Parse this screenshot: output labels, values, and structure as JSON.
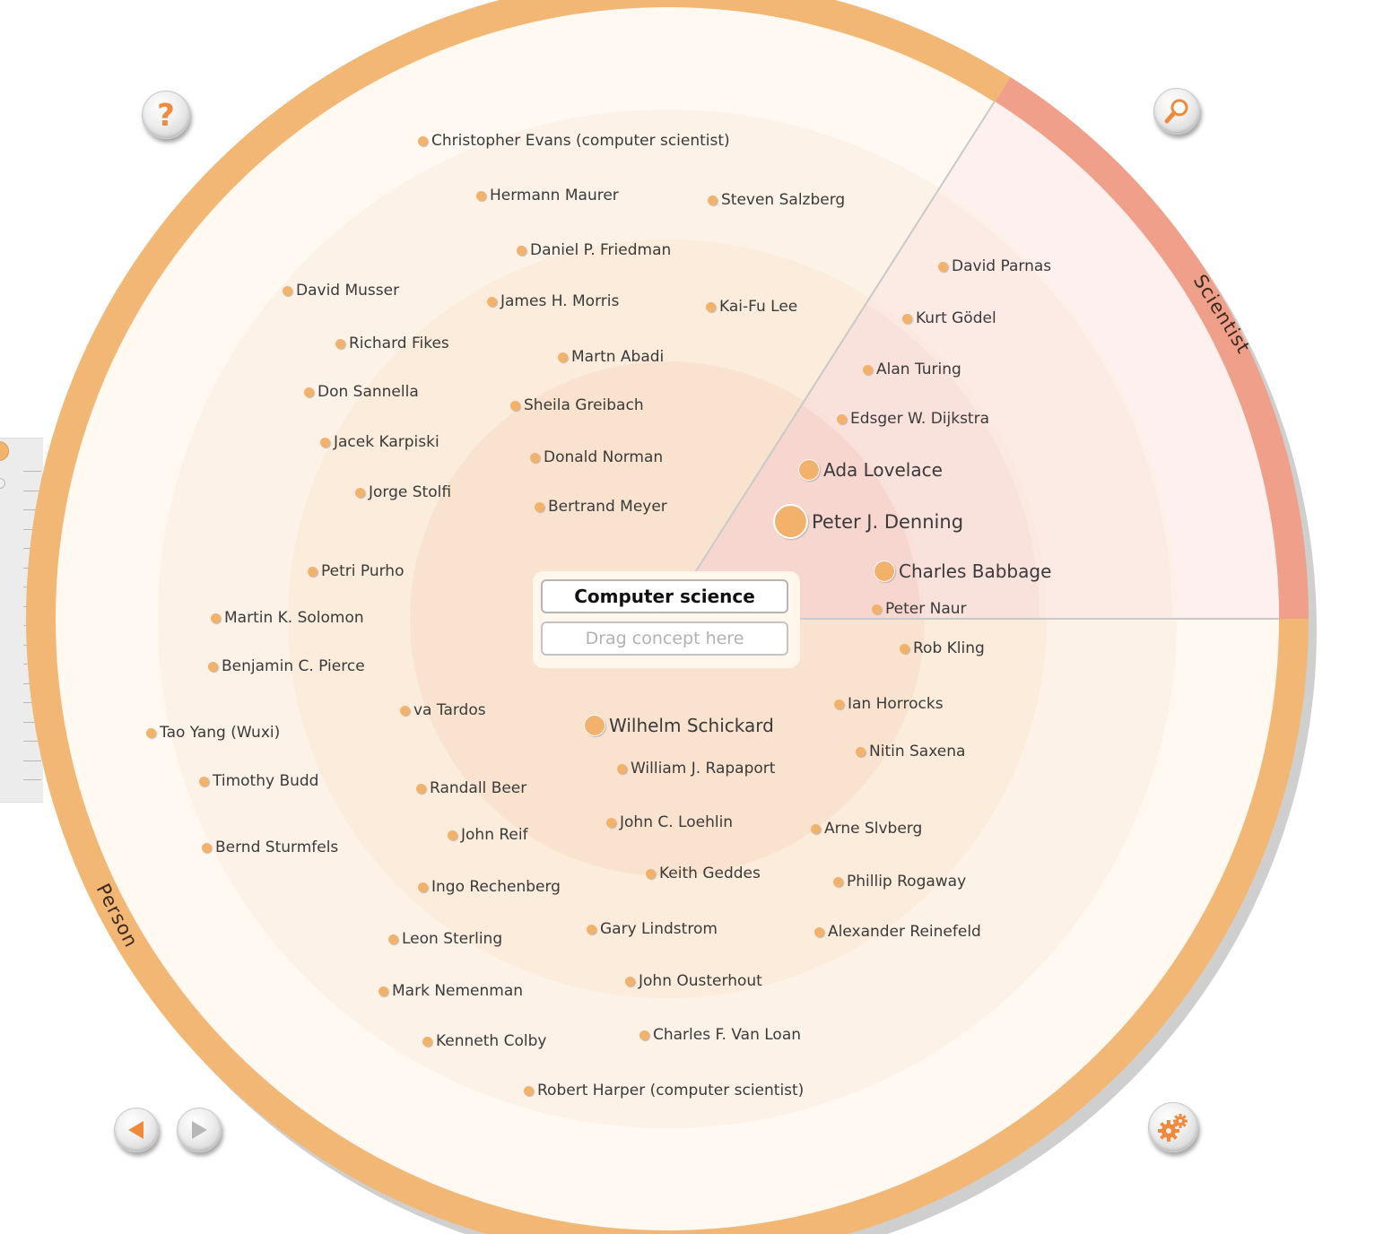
{
  "center": {
    "title": "Computer science",
    "drop_placeholder": "Drag concept here"
  },
  "sectors": {
    "person_label": "Person",
    "scientist_label": "Scientist"
  },
  "colors": {
    "person_ring": "#f2b774",
    "scientist_ring": "#f0a08a",
    "dot": "#f2b26c",
    "text": "#3a3a3a"
  },
  "controls": {
    "help_icon": "question-mark-icon",
    "search_icon": "magnifier-icon",
    "back_icon": "arrow-left-icon",
    "forward_icon": "arrow-right-icon",
    "settings_icon": "gears-icon"
  },
  "concepts": [
    {
      "label": "Christopher Evans (computer scientist)",
      "sector": "person",
      "size": "s"
    },
    {
      "label": "Hermann Maurer",
      "sector": "person",
      "size": "s"
    },
    {
      "label": "Steven Salzberg",
      "sector": "person",
      "size": "s"
    },
    {
      "label": "Daniel P. Friedman",
      "sector": "person",
      "size": "s"
    },
    {
      "label": "David Musser",
      "sector": "person",
      "size": "s"
    },
    {
      "label": "James H. Morris",
      "sector": "person",
      "size": "s"
    },
    {
      "label": "Kai-Fu Lee",
      "sector": "person",
      "size": "s"
    },
    {
      "label": "Richard Fikes",
      "sector": "person",
      "size": "s"
    },
    {
      "label": "Martn Abadi",
      "sector": "person",
      "size": "s"
    },
    {
      "label": "Don Sannella",
      "sector": "person",
      "size": "s"
    },
    {
      "label": "Sheila Greibach",
      "sector": "person",
      "size": "s"
    },
    {
      "label": "Jacek Karpiski",
      "sector": "person",
      "size": "s"
    },
    {
      "label": "Donald Norman",
      "sector": "person",
      "size": "s"
    },
    {
      "label": "Jorge Stolfi",
      "sector": "person",
      "size": "s"
    },
    {
      "label": "Bertrand Meyer",
      "sector": "person",
      "size": "s"
    },
    {
      "label": "Petri Purho",
      "sector": "person",
      "size": "s"
    },
    {
      "label": "Martin K. Solomon",
      "sector": "person",
      "size": "s"
    },
    {
      "label": "Benjamin C. Pierce",
      "sector": "person",
      "size": "s"
    },
    {
      "label": "va Tardos",
      "sector": "person",
      "size": "s"
    },
    {
      "label": "Tao Yang (Wuxi)",
      "sector": "person",
      "size": "s"
    },
    {
      "label": "Wilhelm Schickard",
      "sector": "person",
      "size": "m"
    },
    {
      "label": "William J. Rapaport",
      "sector": "person",
      "size": "s"
    },
    {
      "label": "Timothy Budd",
      "sector": "person",
      "size": "s"
    },
    {
      "label": "Randall Beer",
      "sector": "person",
      "size": "s"
    },
    {
      "label": "John C. Loehlin",
      "sector": "person",
      "size": "s"
    },
    {
      "label": "Bernd Sturmfels",
      "sector": "person",
      "size": "s"
    },
    {
      "label": "John Reif",
      "sector": "person",
      "size": "s"
    },
    {
      "label": "Keith Geddes",
      "sector": "person",
      "size": "s"
    },
    {
      "label": "Ingo Rechenberg",
      "sector": "person",
      "size": "s"
    },
    {
      "label": "Gary Lindstrom",
      "sector": "person",
      "size": "s"
    },
    {
      "label": "Leon Sterling",
      "sector": "person",
      "size": "s"
    },
    {
      "label": "John Ousterhout",
      "sector": "person",
      "size": "s"
    },
    {
      "label": "Mark Nemenman",
      "sector": "person",
      "size": "s"
    },
    {
      "label": "Charles F. Van Loan",
      "sector": "person",
      "size": "s"
    },
    {
      "label": "Kenneth Colby",
      "sector": "person",
      "size": "s"
    },
    {
      "label": "Robert Harper (computer scientist)",
      "sector": "person",
      "size": "s"
    },
    {
      "label": "Rob Kling",
      "sector": "person",
      "size": "s"
    },
    {
      "label": "Ian Horrocks",
      "sector": "person",
      "size": "s"
    },
    {
      "label": "Nitin Saxena",
      "sector": "person",
      "size": "s"
    },
    {
      "label": "Arne Slvberg",
      "sector": "person",
      "size": "s"
    },
    {
      "label": "Phillip Rogaway",
      "sector": "person",
      "size": "s"
    },
    {
      "label": "Alexander Reinefeld",
      "sector": "person",
      "size": "s"
    },
    {
      "label": "David Parnas",
      "sector": "scientist",
      "size": "s"
    },
    {
      "label": "Kurt Gödel",
      "sector": "scientist",
      "size": "s"
    },
    {
      "label": "Alan Turing",
      "sector": "scientist",
      "size": "s"
    },
    {
      "label": "Edsger W. Dijkstra",
      "sector": "scientist",
      "size": "s"
    },
    {
      "label": "Ada Lovelace",
      "sector": "scientist",
      "size": "m"
    },
    {
      "label": "Peter J. Denning",
      "sector": "scientist",
      "size": "l"
    },
    {
      "label": "Charles Babbage",
      "sector": "scientist",
      "size": "m"
    },
    {
      "label": "Peter Naur",
      "sector": "scientist",
      "size": "s"
    }
  ]
}
